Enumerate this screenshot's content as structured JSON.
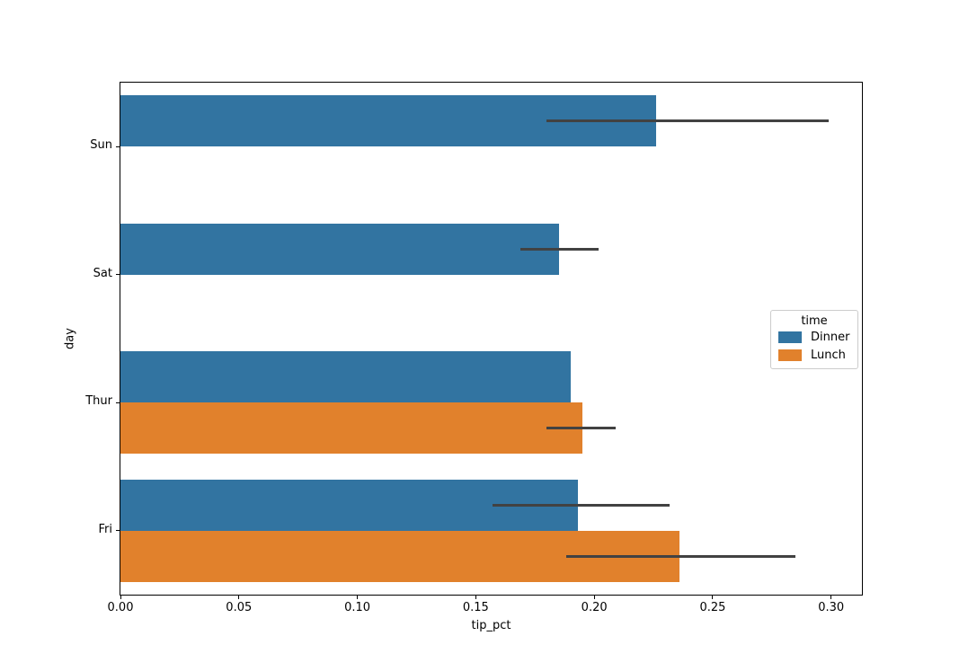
{
  "figure": {
    "background": "#ffffff"
  },
  "chart_data": {
    "type": "bar",
    "orientation": "horizontal",
    "title": "",
    "xlabel": "tip_pct",
    "ylabel": "day",
    "categories": [
      "Sun",
      "Sat",
      "Thur",
      "Fri"
    ],
    "series": [
      {
        "name": "Dinner",
        "color": "#3274a1",
        "values": [
          0.226,
          0.185,
          0.19,
          0.193
        ],
        "ci": [
          [
            0.18,
            0.299
          ],
          [
            0.169,
            0.202
          ],
          null,
          [
            0.157,
            0.232
          ]
        ]
      },
      {
        "name": "Lunch",
        "color": "#e1812c",
        "values": [
          null,
          null,
          0.195,
          0.236
        ],
        "ci": [
          null,
          null,
          [
            0.18,
            0.209
          ],
          [
            0.188,
            0.285
          ]
        ]
      }
    ],
    "xlim": [
      0,
      0.313
    ],
    "xtick_values": [
      0.0,
      0.05,
      0.1,
      0.15,
      0.2,
      0.25,
      0.3
    ],
    "xtick_labels": [
      "0.00",
      "0.05",
      "0.10",
      "0.15",
      "0.20",
      "0.25",
      "0.30"
    ],
    "legend": {
      "title": "time",
      "entries": [
        "Dinner",
        "Lunch"
      ],
      "position": "center right"
    },
    "error_bar_color": "#424242",
    "axis_color": "#000000",
    "grid": false
  }
}
